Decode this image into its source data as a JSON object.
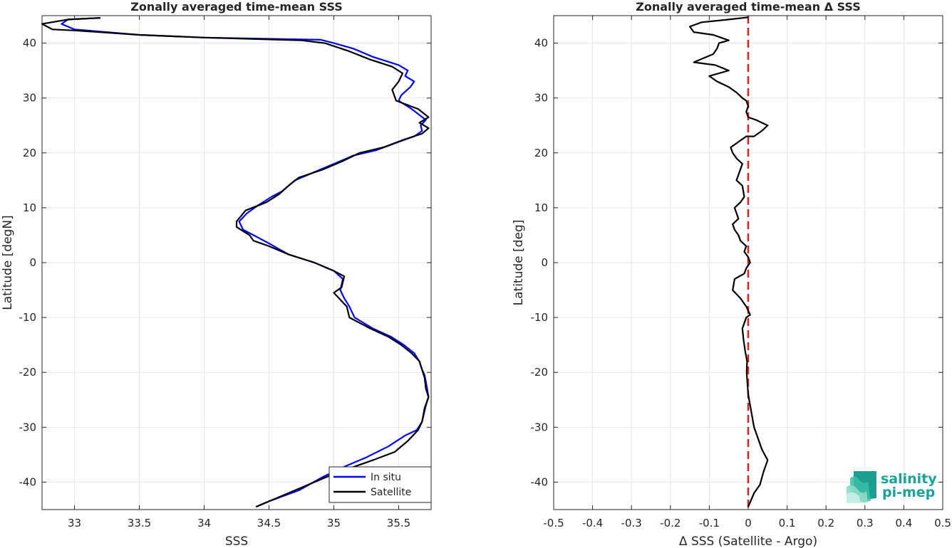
{
  "chart_data": [
    {
      "type": "line",
      "title": "Zonally averaged time-mean SSS",
      "xlabel": "SSS",
      "ylabel": "Latitude [degN]",
      "xlim": [
        32.75,
        35.75
      ],
      "ylim": [
        -45,
        45
      ],
      "xticks": [
        33,
        33.5,
        34,
        34.5,
        35,
        35.5
      ],
      "yticks": [
        -40,
        -30,
        -20,
        -10,
        0,
        10,
        20,
        30,
        40
      ],
      "grid": true,
      "legend": "bottom-right",
      "series": [
        {
          "name": "In situ",
          "color": "#0000ff",
          "points": [
            [
              34.4,
              -44.5
            ],
            [
              34.5,
              -43.5
            ],
            [
              34.73,
              -41.5
            ],
            [
              34.92,
              -39
            ],
            [
              35.1,
              -37
            ],
            [
              35.25,
              -35.5
            ],
            [
              35.42,
              -33.5
            ],
            [
              35.55,
              -31.5
            ],
            [
              35.64,
              -30.5
            ],
            [
              35.68,
              -29
            ],
            [
              35.71,
              -26
            ],
            [
              35.73,
              -24.5
            ],
            [
              35.72,
              -23
            ],
            [
              35.7,
              -20.5
            ],
            [
              35.68,
              -19.5
            ],
            [
              35.66,
              -18
            ],
            [
              35.62,
              -16.5
            ],
            [
              35.54,
              -15
            ],
            [
              35.44,
              -13.5
            ],
            [
              35.3,
              -12
            ],
            [
              35.16,
              -10
            ],
            [
              35.12,
              -8
            ],
            [
              35.08,
              -6.5
            ],
            [
              35.05,
              -5
            ],
            [
              35.07,
              -3
            ],
            [
              35.0,
              -1.5
            ],
            [
              34.85,
              0
            ],
            [
              34.65,
              1.5
            ],
            [
              34.5,
              3.5
            ],
            [
              34.38,
              5
            ],
            [
              34.3,
              6
            ],
            [
              34.27,
              7.5
            ],
            [
              34.33,
              9
            ],
            [
              34.42,
              10.5
            ],
            [
              34.52,
              12
            ],
            [
              34.6,
              13
            ],
            [
              34.7,
              15
            ],
            [
              34.85,
              16.5
            ],
            [
              35.0,
              18
            ],
            [
              35.15,
              19.5
            ],
            [
              35.33,
              20.5
            ],
            [
              35.5,
              22
            ],
            [
              35.62,
              23
            ],
            [
              35.68,
              24
            ],
            [
              35.67,
              25
            ],
            [
              35.71,
              26
            ],
            [
              35.6,
              28
            ],
            [
              35.5,
              29.5
            ],
            [
              35.52,
              30.5
            ],
            [
              35.59,
              32
            ],
            [
              35.62,
              33
            ],
            [
              35.55,
              34
            ],
            [
              35.57,
              35
            ],
            [
              35.5,
              36
            ],
            [
              35.3,
              37.5
            ],
            [
              35.15,
              39
            ],
            [
              35.0,
              40
            ],
            [
              34.9,
              40.6
            ],
            [
              34.0,
              41
            ],
            [
              33.5,
              41.5
            ],
            [
              33.0,
              42.5
            ],
            [
              32.9,
              43.5
            ],
            [
              32.95,
              44.3
            ],
            [
              33.2,
              44.6
            ]
          ]
        },
        {
          "name": "Satellite",
          "color": "#000000",
          "points": [
            [
              34.4,
              -44.5
            ],
            [
              34.5,
              -43.5
            ],
            [
              34.7,
              -41.5
            ],
            [
              34.95,
              -39
            ],
            [
              35.12,
              -37.5
            ],
            [
              35.3,
              -36
            ],
            [
              35.47,
              -34.5
            ],
            [
              35.57,
              -32.5
            ],
            [
              35.65,
              -30.5
            ],
            [
              35.68,
              -29
            ],
            [
              35.7,
              -26.5
            ],
            [
              35.73,
              -24.5
            ],
            [
              35.71,
              -23
            ],
            [
              35.7,
              -21
            ],
            [
              35.68,
              -19.5
            ],
            [
              35.66,
              -18
            ],
            [
              35.6,
              -16.5
            ],
            [
              35.52,
              -15
            ],
            [
              35.42,
              -13.5
            ],
            [
              35.28,
              -12
            ],
            [
              35.12,
              -10
            ],
            [
              35.1,
              -8
            ],
            [
              35.06,
              -7
            ],
            [
              35.0,
              -5.5
            ],
            [
              35.06,
              -4.5
            ],
            [
              35.08,
              -2.5
            ],
            [
              35.0,
              -1.5
            ],
            [
              34.85,
              0
            ],
            [
              34.65,
              1.5
            ],
            [
              34.5,
              3
            ],
            [
              34.38,
              4
            ],
            [
              34.35,
              5
            ],
            [
              34.25,
              6.5
            ],
            [
              34.25,
              7.5
            ],
            [
              34.32,
              9.5
            ],
            [
              34.48,
              11
            ],
            [
              34.58,
              12.5
            ],
            [
              34.65,
              14
            ],
            [
              34.73,
              15.5
            ],
            [
              34.92,
              17
            ],
            [
              35.07,
              18.5
            ],
            [
              35.2,
              20
            ],
            [
              35.38,
              21
            ],
            [
              35.55,
              22.5
            ],
            [
              35.68,
              23.5
            ],
            [
              35.73,
              24.5
            ],
            [
              35.66,
              25.5
            ],
            [
              35.73,
              26.5
            ],
            [
              35.65,
              28
            ],
            [
              35.48,
              29.5
            ],
            [
              35.45,
              31.5
            ],
            [
              35.5,
              33
            ],
            [
              35.53,
              34.5
            ],
            [
              35.45,
              35.7
            ],
            [
              35.28,
              37
            ],
            [
              35.12,
              38.5
            ],
            [
              34.93,
              40
            ],
            [
              34.75,
              40.5
            ],
            [
              34.0,
              41
            ],
            [
              33.5,
              41.5
            ],
            [
              33.0,
              42.3
            ],
            [
              32.83,
              42.5
            ],
            [
              32.75,
              43.5
            ],
            [
              32.95,
              44.3
            ],
            [
              33.2,
              44.6
            ]
          ]
        }
      ]
    },
    {
      "type": "line",
      "title": "Zonally averaged time-mean Δ SSS",
      "xlabel": "Δ SSS (Satellite - Argo)",
      "ylabel": "Latitude [deg]",
      "xlim": [
        -0.5,
        0.5
      ],
      "ylim": [
        -45,
        45
      ],
      "xticks": [
        -0.5,
        -0.4,
        -0.3,
        -0.2,
        -0.1,
        0,
        0.1,
        0.2,
        0.3,
        0.4,
        0.5
      ],
      "yticks": [
        -40,
        -30,
        -20,
        -10,
        0,
        10,
        20,
        30,
        40
      ],
      "grid": true,
      "reference_line": {
        "x": 0,
        "color": "#e0201c",
        "style": "dashed"
      },
      "series": [
        {
          "color": "#000000",
          "points": [
            [
              0.0,
              -44.5
            ],
            [
              0.015,
              -42
            ],
            [
              0.03,
              -40.5
            ],
            [
              0.04,
              -38
            ],
            [
              0.05,
              -36
            ],
            [
              0.035,
              -34
            ],
            [
              0.025,
              -32
            ],
            [
              0.015,
              -30
            ],
            [
              0.01,
              -28
            ],
            [
              0.005,
              -26
            ],
            [
              0.0,
              -24
            ],
            [
              -0.002,
              -22
            ],
            [
              -0.004,
              -20
            ],
            [
              -0.003,
              -18
            ],
            [
              -0.008,
              -16
            ],
            [
              -0.012,
              -14
            ],
            [
              -0.015,
              -12
            ],
            [
              -0.005,
              -10
            ],
            [
              0.005,
              -9.5
            ],
            [
              -0.005,
              -8
            ],
            [
              -0.02,
              -6.5
            ],
            [
              -0.04,
              -5
            ],
            [
              -0.035,
              -3
            ],
            [
              -0.01,
              -2
            ],
            [
              -0.005,
              -1
            ],
            [
              0.005,
              0
            ],
            [
              0.0,
              1
            ],
            [
              -0.01,
              2
            ],
            [
              -0.005,
              3
            ],
            [
              -0.02,
              4
            ],
            [
              -0.025,
              5
            ],
            [
              -0.035,
              6
            ],
            [
              -0.04,
              7
            ],
            [
              -0.025,
              8
            ],
            [
              -0.03,
              9
            ],
            [
              -0.035,
              10
            ],
            [
              -0.02,
              11
            ],
            [
              -0.01,
              12
            ],
            [
              -0.015,
              14
            ],
            [
              -0.03,
              15
            ],
            [
              -0.02,
              17
            ],
            [
              -0.015,
              18
            ],
            [
              -0.03,
              19
            ],
            [
              -0.04,
              20
            ],
            [
              -0.045,
              21
            ],
            [
              -0.025,
              22
            ],
            [
              -0.005,
              23
            ],
            [
              0.015,
              23
            ],
            [
              0.035,
              24
            ],
            [
              0.05,
              25
            ],
            [
              0.02,
              26
            ],
            [
              0.0,
              26.5
            ],
            [
              -0.005,
              27.5
            ],
            [
              0.0,
              28.5
            ],
            [
              -0.005,
              29.5
            ],
            [
              -0.015,
              30
            ],
            [
              -0.03,
              31
            ],
            [
              -0.05,
              32
            ],
            [
              -0.08,
              33
            ],
            [
              -0.1,
              34
            ],
            [
              -0.05,
              35
            ],
            [
              -0.085,
              36
            ],
            [
              -0.14,
              36.5
            ],
            [
              -0.09,
              38
            ],
            [
              -0.08,
              39
            ],
            [
              -0.075,
              40
            ],
            [
              -0.05,
              40.5
            ],
            [
              -0.09,
              41.5
            ],
            [
              -0.14,
              42
            ],
            [
              -0.15,
              43
            ],
            [
              -0.12,
              43.8
            ],
            [
              -0.05,
              44.3
            ],
            [
              0.0,
              44.7
            ]
          ]
        }
      ]
    }
  ],
  "legend": {
    "in_situ_label": "In situ",
    "satellite_label": "Satellite"
  },
  "logo": {
    "line1": "salinity",
    "line2": "pi-mep"
  }
}
